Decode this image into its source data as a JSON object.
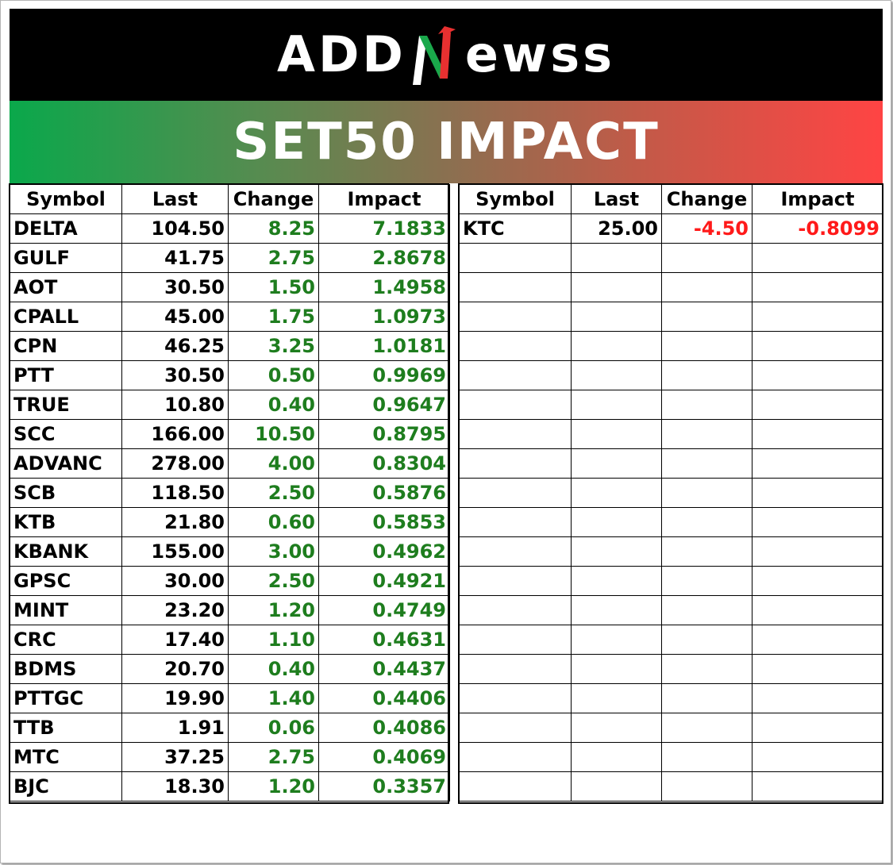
{
  "logo": {
    "left_text": "ADD",
    "right_text": "ewss",
    "n_color_green": "#1aa84b",
    "n_color_red": "#e83030"
  },
  "title": "SET50 IMPACT",
  "colors": {
    "positive": "#1e7d1e",
    "negative": "#ff1a1a",
    "gradient_start": "#0aa84b",
    "gradient_end": "#ff4444"
  },
  "headers": [
    "Symbol",
    "Last",
    "Change",
    "Impact"
  ],
  "gainers": [
    {
      "symbol": "DELTA",
      "last": "104.50",
      "change": "8.25",
      "impact": "7.1833"
    },
    {
      "symbol": "GULF",
      "last": "41.75",
      "change": "2.75",
      "impact": "2.8678"
    },
    {
      "symbol": "AOT",
      "last": "30.50",
      "change": "1.50",
      "impact": "1.4958"
    },
    {
      "symbol": "CPALL",
      "last": "45.00",
      "change": "1.75",
      "impact": "1.0973"
    },
    {
      "symbol": "CPN",
      "last": "46.25",
      "change": "3.25",
      "impact": "1.0181"
    },
    {
      "symbol": "PTT",
      "last": "30.50",
      "change": "0.50",
      "impact": "0.9969"
    },
    {
      "symbol": "TRUE",
      "last": "10.80",
      "change": "0.40",
      "impact": "0.9647"
    },
    {
      "symbol": "SCC",
      "last": "166.00",
      "change": "10.50",
      "impact": "0.8795"
    },
    {
      "symbol": "ADVANC",
      "last": "278.00",
      "change": "4.00",
      "impact": "0.8304"
    },
    {
      "symbol": "SCB",
      "last": "118.50",
      "change": "2.50",
      "impact": "0.5876"
    },
    {
      "symbol": "KTB",
      "last": "21.80",
      "change": "0.60",
      "impact": "0.5853"
    },
    {
      "symbol": "KBANK",
      "last": "155.00",
      "change": "3.00",
      "impact": "0.4962"
    },
    {
      "symbol": "GPSC",
      "last": "30.00",
      "change": "2.50",
      "impact": "0.4921"
    },
    {
      "symbol": "MINT",
      "last": "23.20",
      "change": "1.20",
      "impact": "0.4749"
    },
    {
      "symbol": "CRC",
      "last": "17.40",
      "change": "1.10",
      "impact": "0.4631"
    },
    {
      "symbol": "BDMS",
      "last": "20.70",
      "change": "0.40",
      "impact": "0.4437"
    },
    {
      "symbol": "PTTGC",
      "last": "19.90",
      "change": "1.40",
      "impact": "0.4406"
    },
    {
      "symbol": "TTB",
      "last": "1.91",
      "change": "0.06",
      "impact": "0.4086"
    },
    {
      "symbol": "MTC",
      "last": "37.25",
      "change": "2.75",
      "impact": "0.4069"
    },
    {
      "symbol": "BJC",
      "last": "18.30",
      "change": "1.20",
      "impact": "0.3357"
    }
  ],
  "losers": [
    {
      "symbol": "KTC",
      "last": "25.00",
      "change": "-4.50",
      "impact": "-0.8099"
    },
    {
      "symbol": "",
      "last": "",
      "change": "",
      "impact": ""
    },
    {
      "symbol": "",
      "last": "",
      "change": "",
      "impact": ""
    },
    {
      "symbol": "",
      "last": "",
      "change": "",
      "impact": ""
    },
    {
      "symbol": "",
      "last": "",
      "change": "",
      "impact": ""
    },
    {
      "symbol": "",
      "last": "",
      "change": "",
      "impact": ""
    },
    {
      "symbol": "",
      "last": "",
      "change": "",
      "impact": ""
    },
    {
      "symbol": "",
      "last": "",
      "change": "",
      "impact": ""
    },
    {
      "symbol": "",
      "last": "",
      "change": "",
      "impact": ""
    },
    {
      "symbol": "",
      "last": "",
      "change": "",
      "impact": ""
    },
    {
      "symbol": "",
      "last": "",
      "change": "",
      "impact": ""
    },
    {
      "symbol": "",
      "last": "",
      "change": "",
      "impact": ""
    },
    {
      "symbol": "",
      "last": "",
      "change": "",
      "impact": ""
    },
    {
      "symbol": "",
      "last": "",
      "change": "",
      "impact": ""
    },
    {
      "symbol": "",
      "last": "",
      "change": "",
      "impact": ""
    },
    {
      "symbol": "",
      "last": "",
      "change": "",
      "impact": ""
    },
    {
      "symbol": "",
      "last": "",
      "change": "",
      "impact": ""
    },
    {
      "symbol": "",
      "last": "",
      "change": "",
      "impact": ""
    },
    {
      "symbol": "",
      "last": "",
      "change": "",
      "impact": ""
    },
    {
      "symbol": "",
      "last": "",
      "change": "",
      "impact": ""
    }
  ]
}
